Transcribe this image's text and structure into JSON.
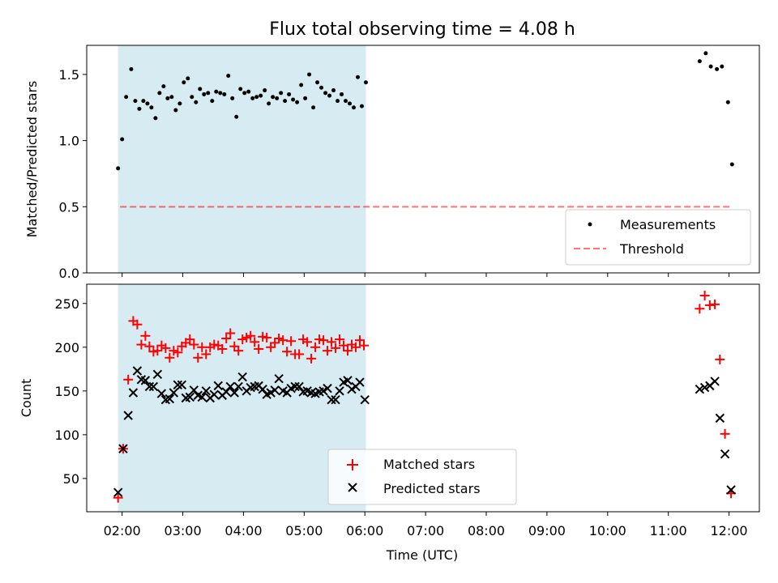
{
  "title": "Flux total observing time = 4.08 h",
  "chart_data": [
    {
      "type": "scatter",
      "ylabel": "Matched/Predicted stars",
      "ylim": [
        0,
        1.72
      ],
      "yticks": [
        "0.0",
        "0.5",
        "1.0",
        "1.5"
      ],
      "ytick_values": [
        0,
        0.5,
        1.0,
        1.5
      ],
      "threshold": 0.5,
      "threshold_range": [
        "01:58",
        "12:02"
      ],
      "shaded_range": [
        "01:56",
        "06:01"
      ],
      "legend": {
        "placement": "lower-right",
        "measurements_label": "Measurements",
        "threshold_label": "Threshold"
      },
      "series": [
        {
          "name": "Measurements",
          "x": [
            "01:56",
            "02:00",
            "02:04",
            "02:09",
            "02:13",
            "02:17",
            "02:21",
            "02:25",
            "02:29",
            "02:33",
            "02:37",
            "02:41",
            "02:45",
            "02:49",
            "02:53",
            "02:57",
            "03:01",
            "03:05",
            "03:09",
            "03:13",
            "03:17",
            "03:21",
            "03:25",
            "03:29",
            "03:33",
            "03:37",
            "03:41",
            "03:45",
            "03:49",
            "03:53",
            "03:57",
            "04:01",
            "04:05",
            "04:09",
            "04:13",
            "04:17",
            "04:21",
            "04:25",
            "04:29",
            "04:33",
            "04:37",
            "04:41",
            "04:45",
            "04:49",
            "04:53",
            "04:57",
            "05:01",
            "05:05",
            "05:09",
            "05:13",
            "05:17",
            "05:21",
            "05:25",
            "05:29",
            "05:33",
            "05:37",
            "05:41",
            "05:45",
            "05:49",
            "05:53",
            "05:57",
            "06:01",
            "11:31",
            "11:37",
            "11:42",
            "11:48",
            "11:53",
            "11:59",
            "12:03"
          ],
          "y": [
            0.79,
            1.01,
            1.33,
            1.54,
            1.3,
            1.24,
            1.3,
            1.28,
            1.25,
            1.17,
            1.36,
            1.41,
            1.32,
            1.33,
            1.23,
            1.28,
            1.44,
            1.47,
            1.33,
            1.29,
            1.39,
            1.35,
            1.36,
            1.3,
            1.37,
            1.36,
            1.35,
            1.49,
            1.32,
            1.18,
            1.39,
            1.36,
            1.37,
            1.32,
            1.33,
            1.34,
            1.38,
            1.28,
            1.33,
            1.32,
            1.36,
            1.3,
            1.35,
            1.31,
            1.29,
            1.42,
            1.32,
            1.5,
            1.25,
            1.44,
            1.4,
            1.36,
            1.34,
            1.38,
            1.3,
            1.35,
            1.3,
            1.28,
            1.25,
            1.48,
            1.26,
            1.44,
            1.6,
            1.66,
            1.56,
            1.54,
            1.56,
            1.29,
            0.82
          ]
        }
      ]
    },
    {
      "type": "scatter",
      "ylabel": "Count",
      "xlabel": "Time (UTC)",
      "ylim": [
        12,
        272
      ],
      "yticks": [
        "50",
        "100",
        "150",
        "200",
        "250"
      ],
      "ytick_values": [
        50,
        100,
        150,
        200,
        250
      ],
      "xticks": [
        "02:00",
        "03:00",
        "04:00",
        "05:00",
        "06:00",
        "07:00",
        "08:00",
        "09:00",
        "10:00",
        "11:00",
        "12:00"
      ],
      "xrange": [
        "01:25",
        "12:30"
      ],
      "shaded_range": [
        "01:56",
        "06:01"
      ],
      "legend": {
        "placement": "lower-center"
      },
      "series": [
        {
          "name": "Matched stars",
          "color": "#ff0000",
          "marker": "plus",
          "x": [
            "01:56",
            "02:01",
            "02:06",
            "02:11",
            "02:15",
            "02:19",
            "02:23",
            "02:27",
            "02:31",
            "02:35",
            "02:39",
            "02:43",
            "02:47",
            "02:51",
            "02:55",
            "02:59",
            "03:03",
            "03:07",
            "03:11",
            "03:15",
            "03:19",
            "03:23",
            "03:27",
            "03:31",
            "03:35",
            "03:39",
            "03:43",
            "03:47",
            "03:51",
            "03:55",
            "03:59",
            "04:03",
            "04:07",
            "04:11",
            "04:15",
            "04:19",
            "04:23",
            "04:27",
            "04:31",
            "04:35",
            "04:39",
            "04:43",
            "04:47",
            "04:51",
            "04:55",
            "04:59",
            "05:03",
            "05:07",
            "05:11",
            "05:15",
            "05:19",
            "05:23",
            "05:27",
            "05:31",
            "05:35",
            "05:39",
            "05:43",
            "05:47",
            "05:51",
            "05:55",
            "05:59",
            "11:31",
            "11:36",
            "11:41",
            "11:46",
            "11:51",
            "11:56",
            "12:02"
          ],
          "y": [
            28,
            84,
            163,
            230,
            226,
            203,
            213,
            201,
            195,
            196,
            202,
            199,
            188,
            196,
            194,
            201,
            205,
            209,
            203,
            188,
            200,
            192,
            200,
            203,
            202,
            198,
            210,
            216,
            201,
            196,
            209,
            211,
            213,
            206,
            198,
            212,
            211,
            200,
            205,
            210,
            208,
            195,
            207,
            192,
            192,
            209,
            206,
            187,
            200,
            209,
            208,
            196,
            206,
            199,
            209,
            202,
            196,
            203,
            200,
            208,
            202,
            244,
            259,
            248,
            249,
            186,
            101,
            33
          ]
        },
        {
          "name": "Predicted stars",
          "color": "#000000",
          "marker": "x",
          "x": [
            "01:56",
            "02:01",
            "02:06",
            "02:11",
            "02:15",
            "02:19",
            "02:23",
            "02:27",
            "02:31",
            "02:35",
            "02:39",
            "02:43",
            "02:47",
            "02:51",
            "02:55",
            "02:59",
            "03:03",
            "03:07",
            "03:11",
            "03:15",
            "03:19",
            "03:23",
            "03:27",
            "03:31",
            "03:35",
            "03:39",
            "03:43",
            "03:47",
            "03:51",
            "03:55",
            "03:59",
            "04:03",
            "04:07",
            "04:11",
            "04:15",
            "04:19",
            "04:23",
            "04:27",
            "04:31",
            "04:35",
            "04:39",
            "04:43",
            "04:47",
            "04:51",
            "04:55",
            "04:59",
            "05:03",
            "05:07",
            "05:11",
            "05:15",
            "05:19",
            "05:23",
            "05:27",
            "05:31",
            "05:35",
            "05:39",
            "05:43",
            "05:47",
            "05:51",
            "05:55",
            "06:00",
            "11:31",
            "11:36",
            "11:41",
            "11:46",
            "11:51",
            "11:56",
            "12:02"
          ],
          "y": [
            34,
            84,
            122,
            148,
            173,
            163,
            162,
            155,
            155,
            169,
            147,
            140,
            141,
            148,
            157,
            157,
            142,
            143,
            151,
            145,
            143,
            150,
            142,
            146,
            156,
            145,
            149,
            155,
            148,
            155,
            166,
            150,
            154,
            155,
            156,
            152,
            146,
            148,
            151,
            164,
            150,
            148,
            153,
            155,
            155,
            149,
            150,
            148,
            147,
            149,
            150,
            153,
            140,
            140,
            150,
            160,
            162,
            152,
            155,
            160,
            140,
            152,
            154,
            156,
            161,
            119,
            78,
            37
          ]
        }
      ]
    }
  ]
}
